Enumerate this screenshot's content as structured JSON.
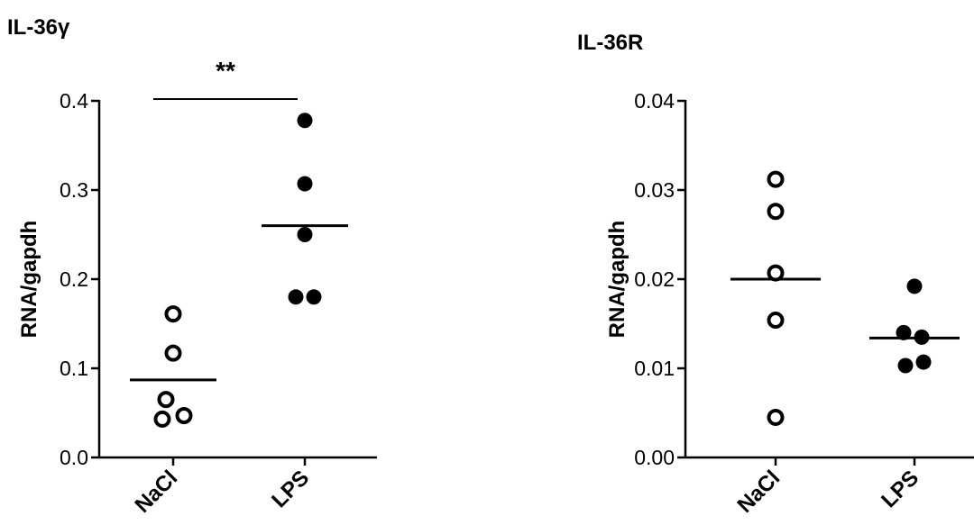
{
  "chart_data": [
    {
      "type": "scatter",
      "title": "IL-36γ",
      "ylabel": "RNA/gapdh",
      "xlabel": "",
      "categories": [
        "NaCl",
        "LPS"
      ],
      "ylim": [
        0,
        0.4
      ],
      "yticks": [
        "0.0",
        "0.1",
        "0.2",
        "0.3",
        "0.4"
      ],
      "yticks_values": [
        0,
        0.1,
        0.2,
        0.3,
        0.4
      ],
      "series": [
        {
          "category": "NaCl",
          "marker": "open-circle",
          "values": [
            0.161,
            0.117,
            0.065,
            0.043,
            0.047
          ],
          "mean": 0.087
        },
        {
          "category": "LPS",
          "marker": "filled-circle",
          "values": [
            0.378,
            0.307,
            0.25,
            0.18,
            0.18
          ],
          "mean": 0.26
        }
      ],
      "significance": {
        "label": "**",
        "y": 0.4,
        "between": [
          "NaCl",
          "LPS"
        ]
      },
      "grid": false
    },
    {
      "type": "scatter",
      "title": "IL-36R",
      "ylabel": "RNA/gapdh",
      "xlabel": "",
      "categories": [
        "NaCl",
        "LPS"
      ],
      "ylim": [
        0,
        0.04
      ],
      "yticks": [
        "0.00",
        "0.01",
        "0.02",
        "0.03",
        "0.04"
      ],
      "yticks_values": [
        0,
        0.01,
        0.02,
        0.03,
        0.04
      ],
      "series": [
        {
          "category": "NaCl",
          "marker": "open-circle",
          "values": [
            0.0312,
            0.0276,
            0.0207,
            0.0154,
            0.0045
          ],
          "mean": 0.02
        },
        {
          "category": "LPS",
          "marker": "filled-circle",
          "values": [
            0.0192,
            0.014,
            0.0135,
            0.0103,
            0.0107
          ],
          "mean": 0.0134
        }
      ],
      "grid": false
    }
  ]
}
